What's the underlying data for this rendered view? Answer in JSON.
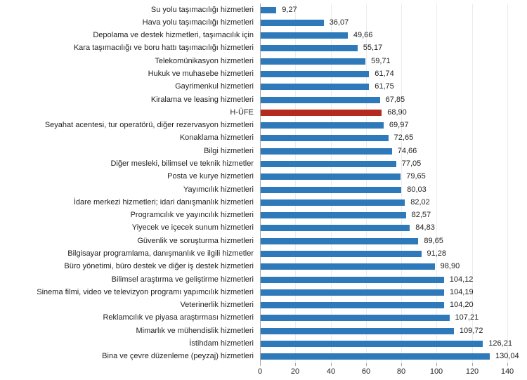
{
  "chart_data": {
    "type": "bar",
    "orientation": "horizontal",
    "title": "",
    "xlabel": "",
    "ylabel": "",
    "categories": [
      "Su yolu taşımacılığı hizmetleri",
      "Hava yolu taşımacılığı hizmetleri",
      "Depolama ve destek hizmetleri, taşımacılık için",
      "Kara taşımacılığı ve boru hattı taşımacılığı hizmetleri",
      "Telekomünikasyon hizmetleri",
      "Hukuk ve muhasebe hizmetleri",
      "Gayrimenkul hizmetleri",
      "Kiralama ve leasing hizmetleri",
      "H-ÜFE",
      "Seyahat acentesi, tur operatörü, diğer rezervasyon hizmetleri",
      "Konaklama hizmetleri",
      "Bilgi hizmetleri",
      "Diğer mesleki, bilimsel ve teknik hizmetler",
      "Posta ve kurye hizmetleri",
      "Yayımcılık hizmetleri",
      "İdare merkezi hizmetleri; idari danışmanlık hizmetleri",
      "Programcılık ve yayıncılık hizmetleri",
      "Yiyecek ve içecek sunum hizmetleri",
      "Güvenlik ve soruşturma hizmetleri",
      "Bilgisayar programlama, danışmanlık ve ilgili hizmetler",
      "Büro yönetimi, büro destek ve diğer iş destek hizmetleri",
      "Bilimsel araştırma ve geliştirme hizmetleri",
      "Sinema filmi, video ve televizyon programı yapımcılık hizmetleri",
      "Veterinerlik hizmetleri",
      "Reklamcılık ve piyasa araştırması hizmetleri",
      "Mimarlık ve mühendislik hizmetleri",
      "İstihdam hizmetleri",
      "Bina ve çevre düzenleme (peyzaj) hizmetleri"
    ],
    "values": [
      9.27,
      36.07,
      49.66,
      55.17,
      59.71,
      61.74,
      61.75,
      67.85,
      68.9,
      69.97,
      72.65,
      74.66,
      77.05,
      79.65,
      80.03,
      82.02,
      82.57,
      84.83,
      89.65,
      91.28,
      98.9,
      104.12,
      104.19,
      104.2,
      107.21,
      109.72,
      126.21,
      130.04
    ],
    "value_labels": [
      "9,27",
      "36,07",
      "49,66",
      "55,17",
      "59,71",
      "61,74",
      "61,75",
      "67,85",
      "68,90",
      "69,97",
      "72,65",
      "74,66",
      "77,05",
      "79,65",
      "80,03",
      "82,02",
      "82,57",
      "84,83",
      "89,65",
      "91,28",
      "98,90",
      "104,12",
      "104,19",
      "104,20",
      "107,21",
      "109,72",
      "126,21",
      "130,04"
    ],
    "highlight_index": 8,
    "highlight_category": "H-ÜFE",
    "x_ticks": [
      "0",
      "20",
      "40",
      "60",
      "80",
      "100",
      "120",
      "140"
    ],
    "x_tick_values": [
      0,
      20,
      40,
      60,
      80,
      100,
      120,
      140
    ],
    "xlim": [
      0,
      140
    ],
    "legend": "none",
    "grid": "vertical-major",
    "colors": {
      "bar": "#2e79b9",
      "highlight": "#b42a1e",
      "axis": "#a6a6a6",
      "gridline": "#ececec",
      "text": "#1f1f1f"
    }
  }
}
